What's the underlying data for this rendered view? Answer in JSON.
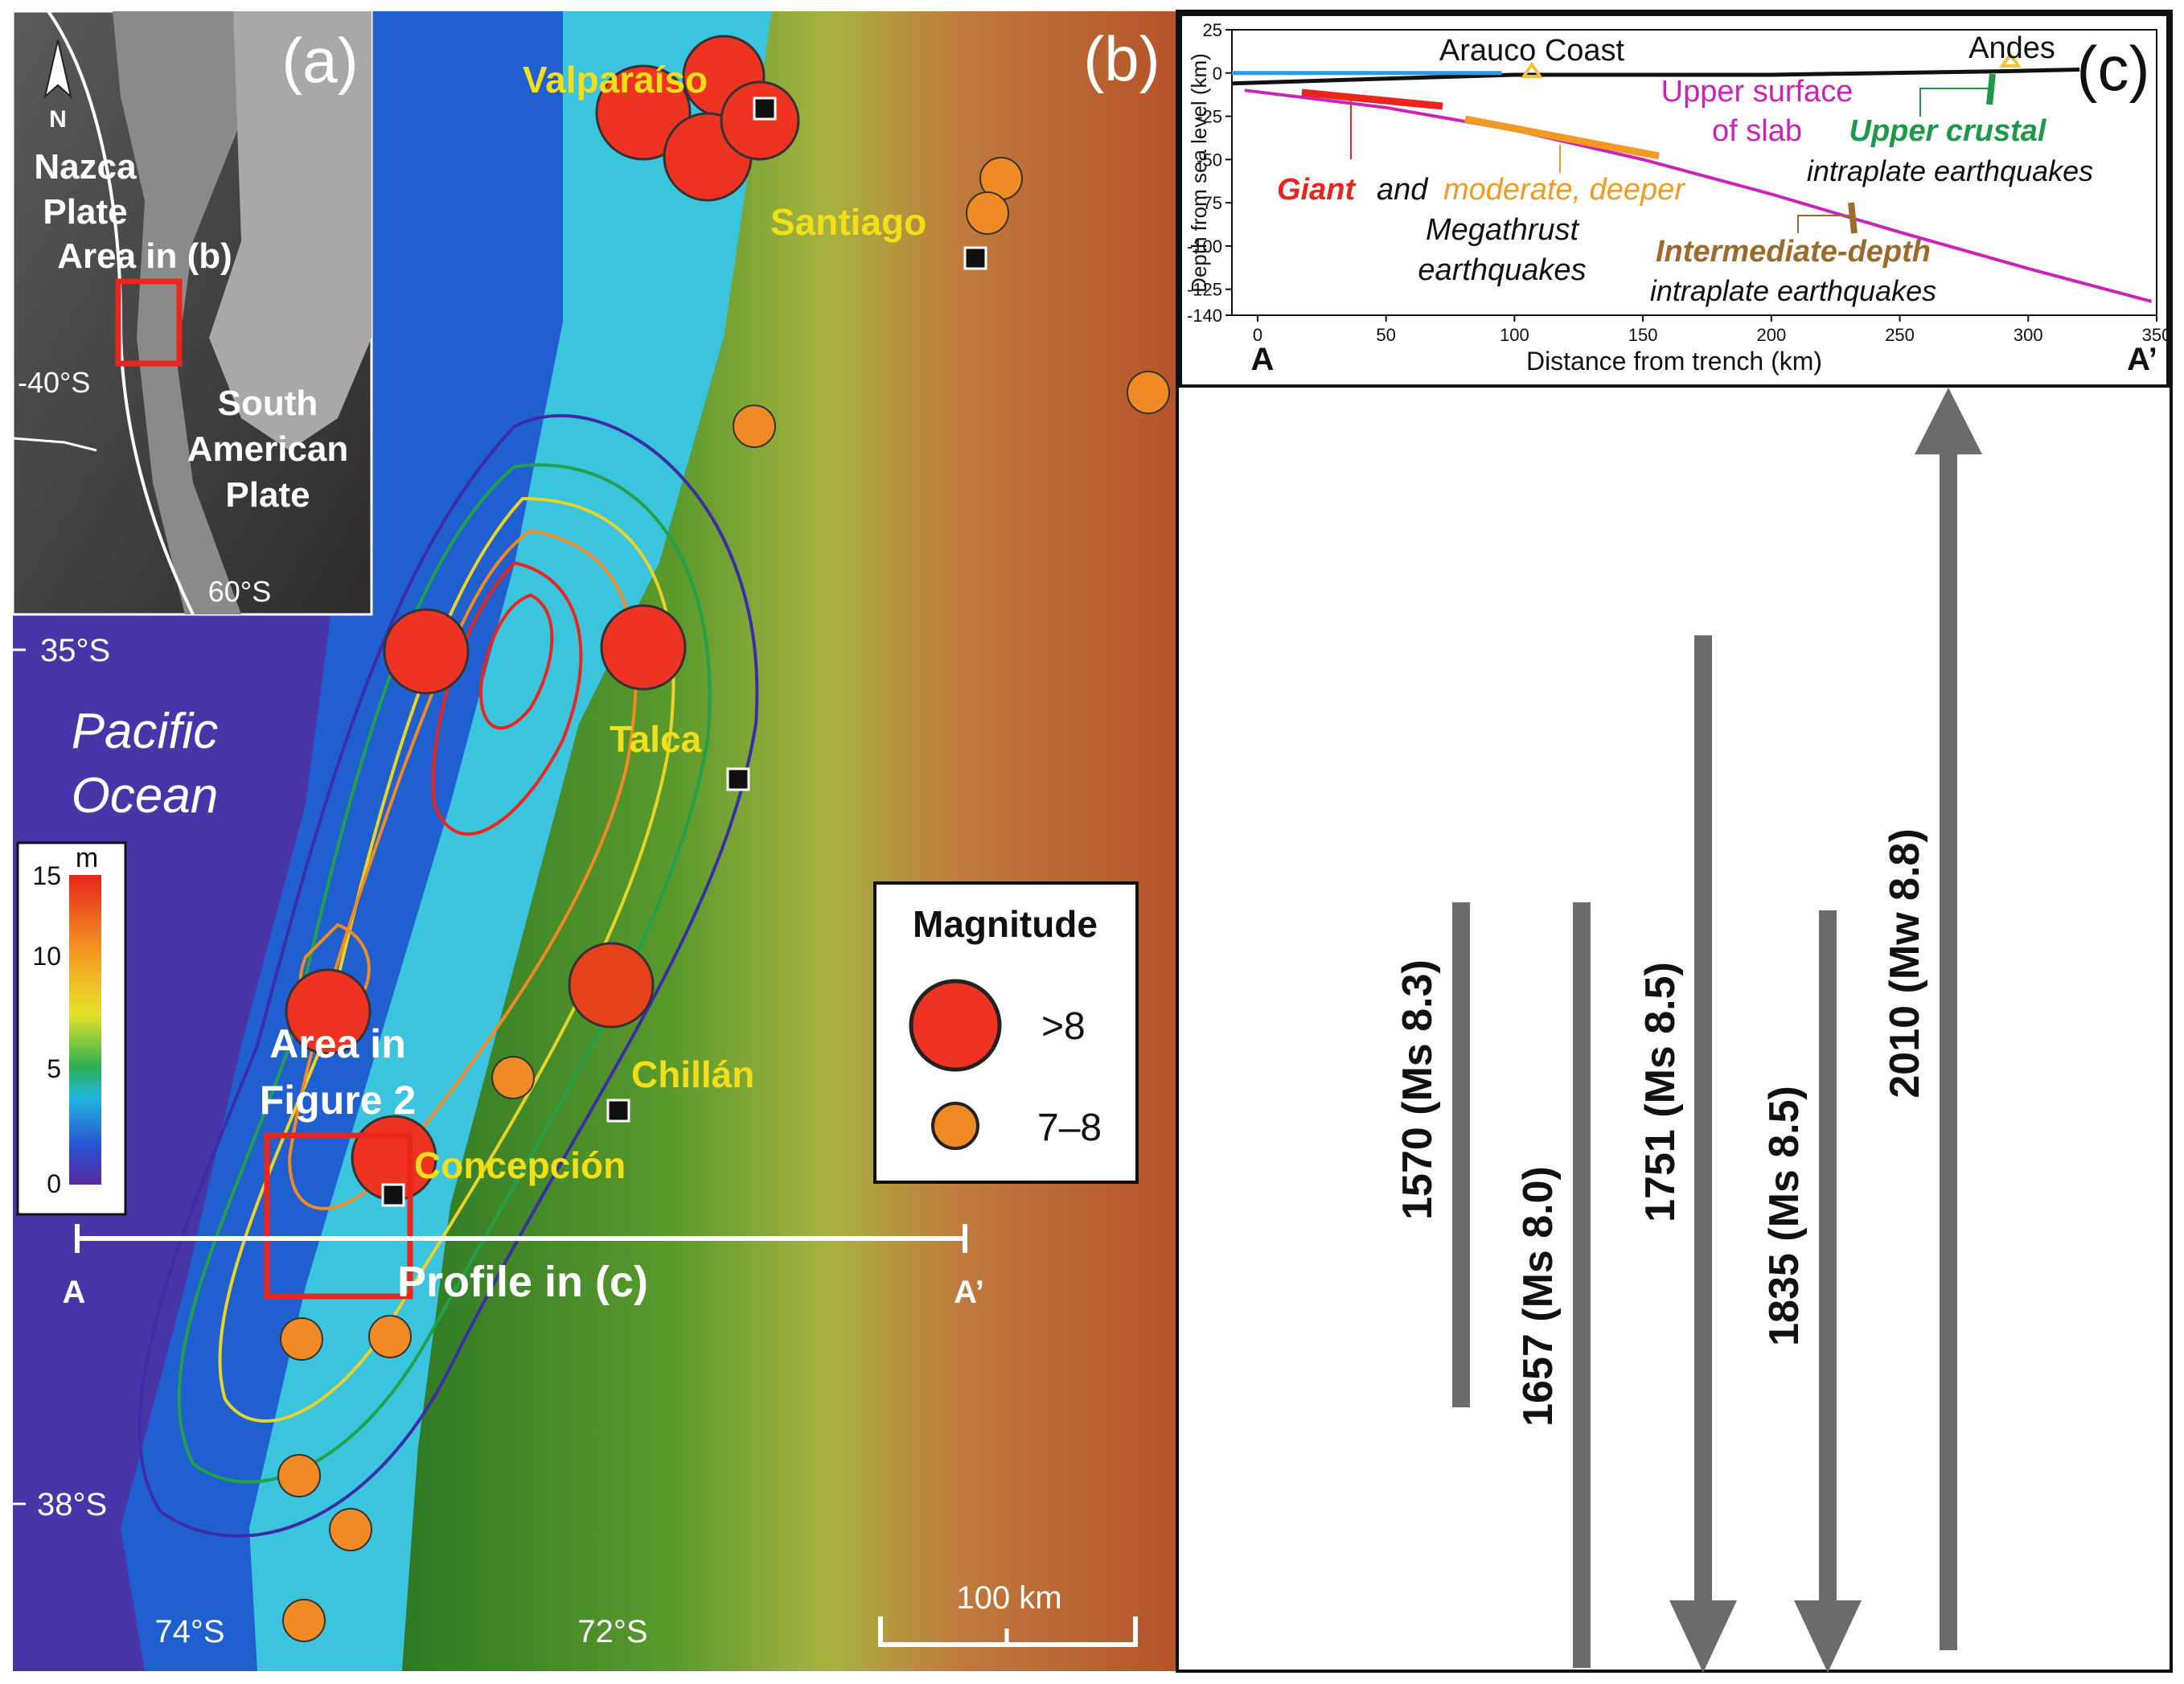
{
  "panel_a": {
    "label": "(a)",
    "north": "N",
    "plate_nazca": [
      "Nazca",
      "Plate"
    ],
    "area_in_b": "Area in (b)",
    "plate_sa": [
      "South",
      "American",
      "Plate"
    ],
    "lat_40": "-40°S",
    "lat_60": "60°S"
  },
  "panel_b": {
    "label": "(b)",
    "cities": {
      "valparaiso": "Valparaíso",
      "santiago": "Santiago",
      "talca": "Talca",
      "chillan": "Chillán",
      "concepcion": "Concepción"
    },
    "ocean": [
      "Pacific",
      "Ocean"
    ],
    "lat_35": "35°S",
    "lat_38": "38°S",
    "lon_74": "74°S",
    "lon_72": "72°S",
    "area_fig2": [
      "Area in",
      "Figure 2"
    ],
    "profile": "Profile in (c)",
    "profile_a": "A",
    "profile_a2": "A’",
    "scale": "100 km",
    "colorbar": {
      "unit": "m",
      "ticks": [
        "15",
        "10",
        "5",
        "0"
      ]
    },
    "legend": {
      "title": "Magnitude",
      "big": ">8",
      "small": "7–8"
    },
    "colors": {
      "big_quake": "#ee3322",
      "small_quake": "#f08a24",
      "city_label": "#f3de1a"
    }
  },
  "panel_c": {
    "label": "(c)",
    "chart_data": {
      "type": "line",
      "xlabel": "Distance from trench (km)",
      "ylabel": "Depth from sea level (km)",
      "xlim": [
        -10,
        350
      ],
      "ylim": [
        -140,
        25
      ],
      "x_ticks": [
        "0",
        "50",
        "100",
        "150",
        "200",
        "250",
        "300",
        "350"
      ],
      "y_ticks": [
        "25",
        "0",
        "-25",
        "-50",
        "-75",
        "-100",
        "-125",
        "-140"
      ],
      "series": [
        {
          "name": "Upper surface of slab",
          "color": "#cc22bb",
          "x": [
            -5,
            50,
            100,
            150,
            200,
            250,
            300,
            348
          ],
          "y": [
            -10,
            -20,
            -33,
            -50,
            -70,
            -92,
            -113,
            -132
          ]
        },
        {
          "name": "topography",
          "color": "#111111",
          "x": [
            -10,
            100,
            200,
            290,
            320
          ],
          "y": [
            -6,
            -1,
            -1,
            1,
            2
          ]
        },
        {
          "name": "sea",
          "color": "#3399dd",
          "x": [
            -10,
            95
          ],
          "y": [
            0,
            0
          ]
        }
      ],
      "annotations": {
        "arauco": "Arauco Coast",
        "andes": "Andes",
        "slab": [
          "Upper surface",
          "of slab"
        ],
        "upper_crustal": "Upper crustal",
        "intraplate1": "intraplate earthquakes",
        "giant": "Giant",
        "and": "and",
        "moderate": "moderate, deeper",
        "megathrust": [
          "Megathrust",
          "earthquakes"
        ],
        "intermediate": "Intermediate-depth",
        "intraplate2": "intraplate earthquakes",
        "end_a": "A",
        "end_a2": "A’"
      }
    }
  },
  "timeline": {
    "events": [
      {
        "label": "1570 (Ms 8.3)"
      },
      {
        "label": "1657 (Ms 8.0)"
      },
      {
        "label": "1751 (Ms 8.5)"
      },
      {
        "label": "1835 (Ms 8.5)"
      },
      {
        "label": "2010 (Mw 8.8)"
      }
    ],
    "bar_color": "#6b6b6b"
  }
}
